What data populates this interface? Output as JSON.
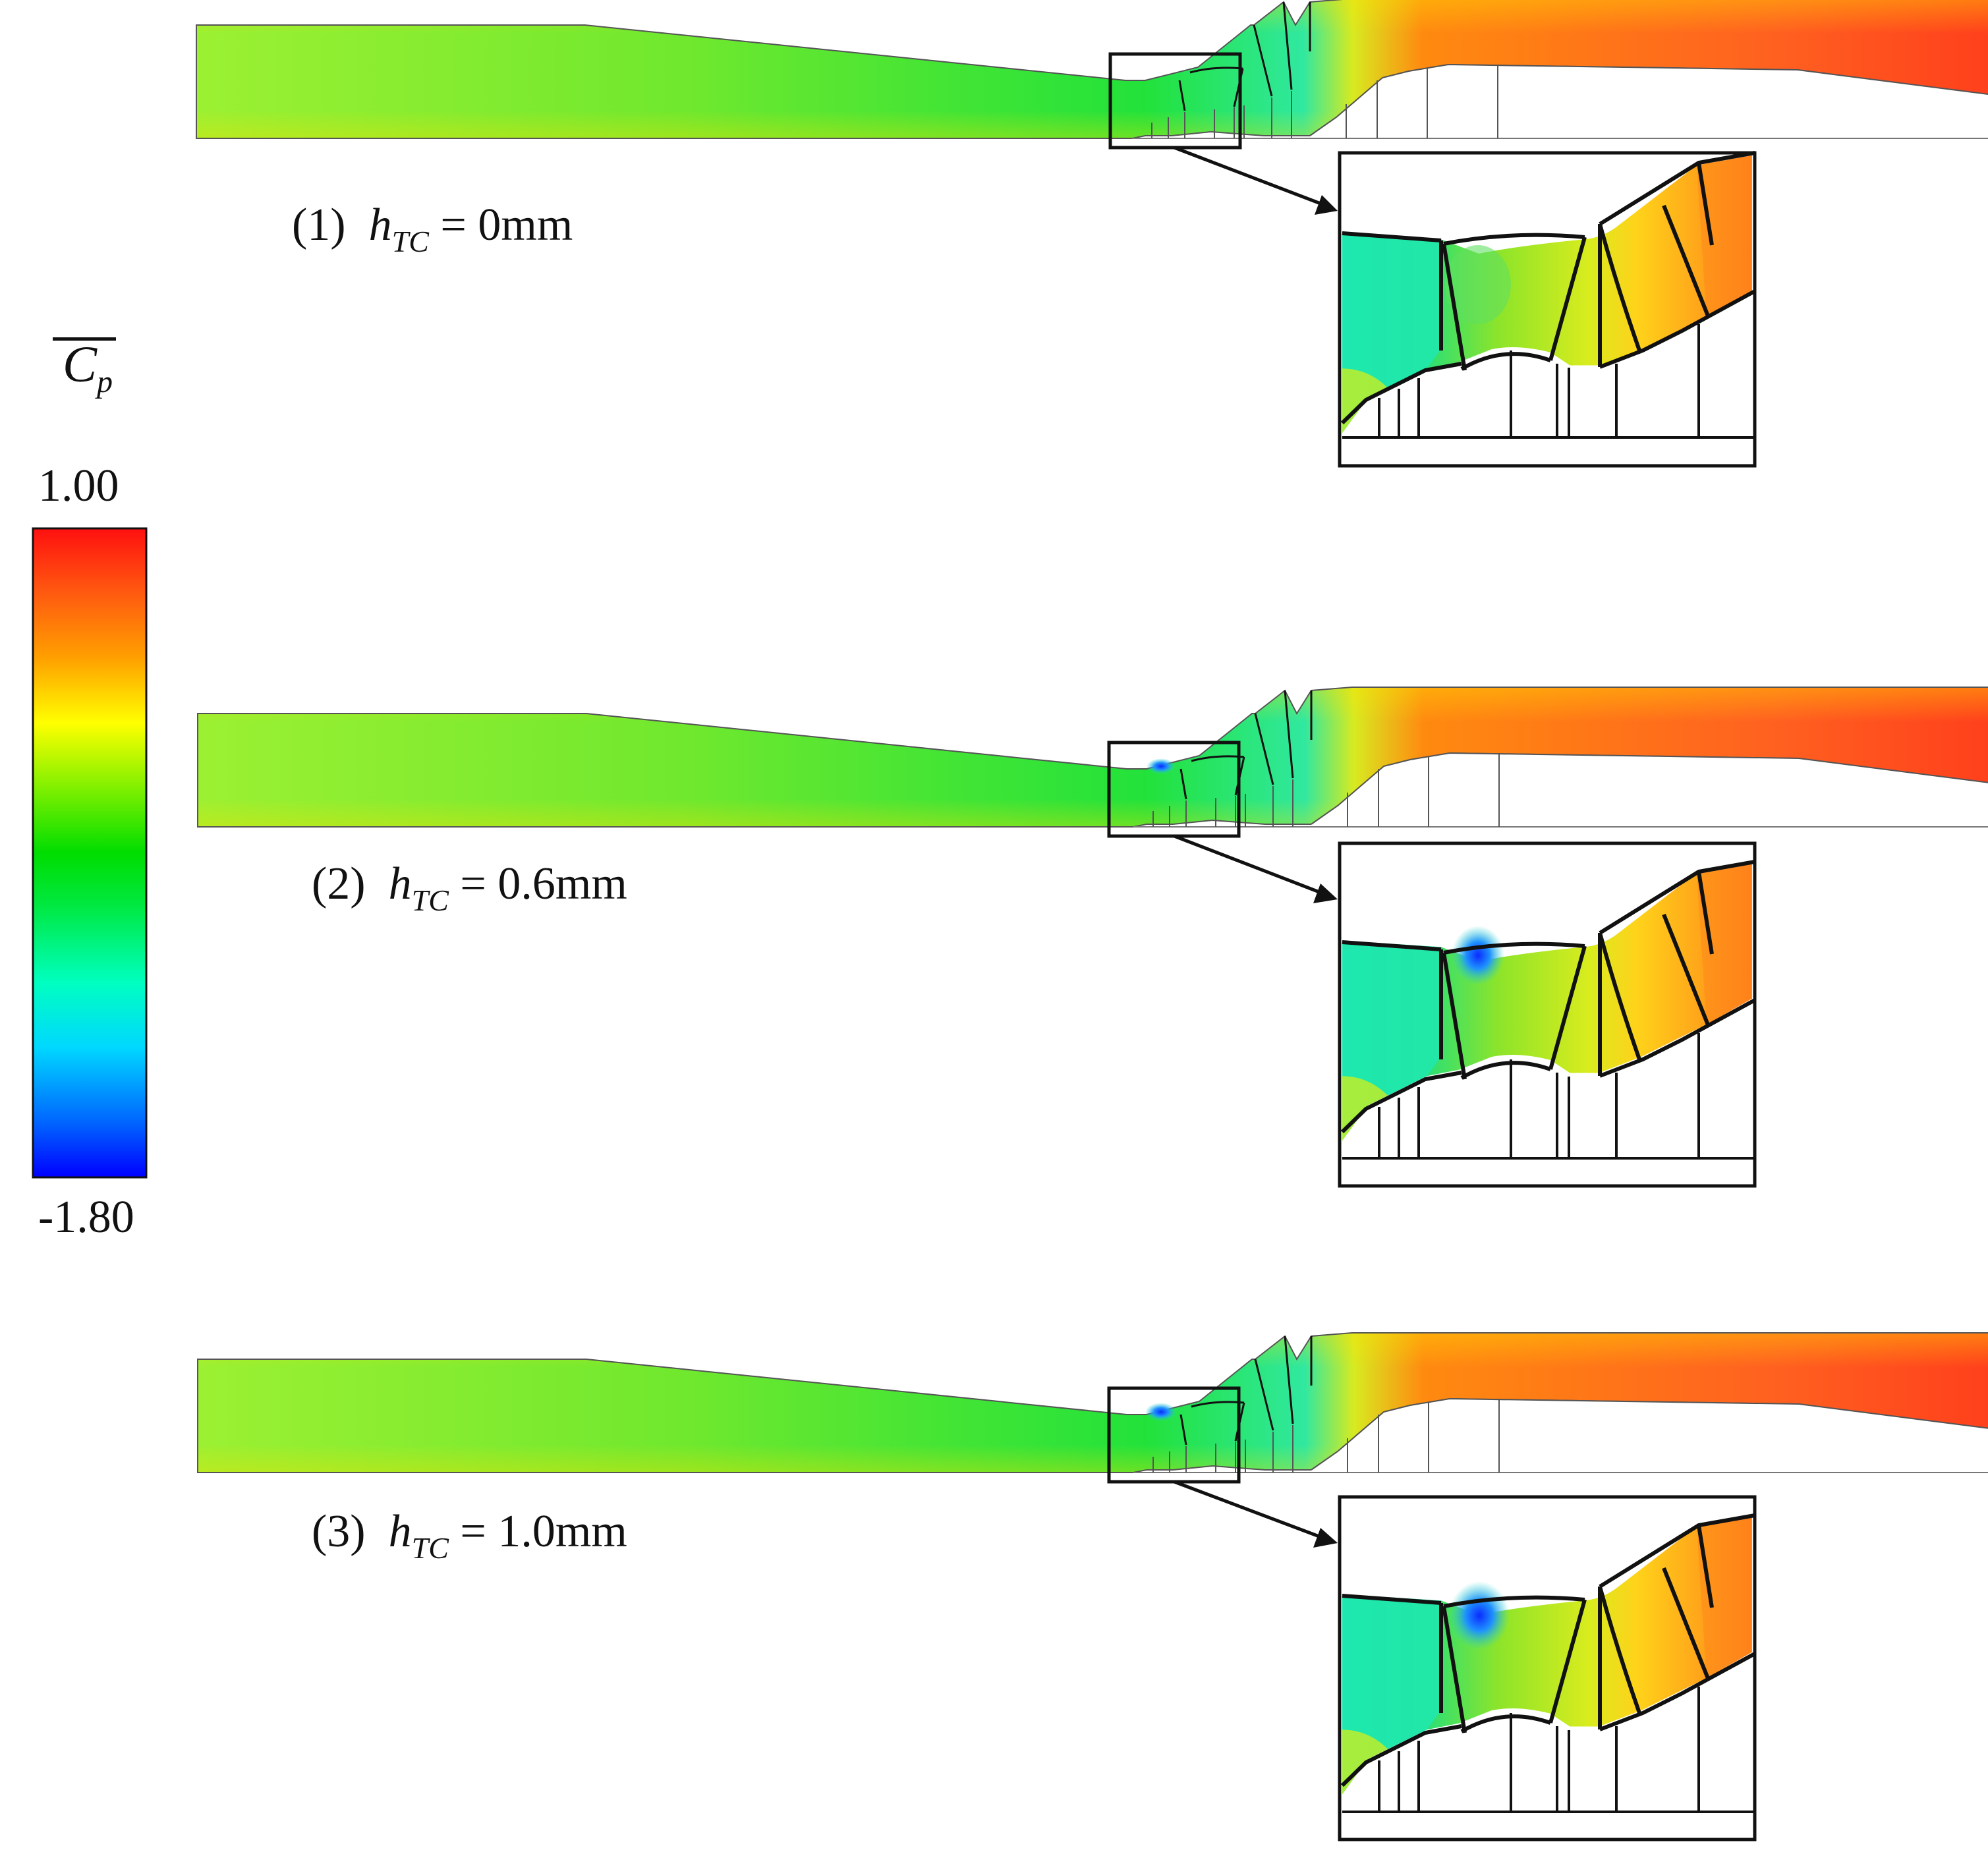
{
  "legend": {
    "title_symbol": "C",
    "title_subscript": "p",
    "max_label": "1.00",
    "min_label": "-1.80",
    "max_value": 1.0,
    "min_value": -1.8,
    "colormap": [
      "#0000ff",
      "#0060ff",
      "#00c8ff",
      "#00ffe0",
      "#00ff80",
      "#00e000",
      "#60f000",
      "#c8ff00",
      "#ffff00",
      "#ffc000",
      "#ff8000",
      "#ff4000",
      "#ff1010"
    ]
  },
  "cases": [
    {
      "index": "(1)",
      "symbol": "h",
      "subscript": "TC",
      "value_text": "= 0mm",
      "tip_clearance_mm": 0.0,
      "has_tip_vortex": false
    },
    {
      "index": "(2)",
      "symbol": "h",
      "subscript": "TC",
      "value_text": "= 0.6mm",
      "tip_clearance_mm": 0.6,
      "has_tip_vortex": true
    },
    {
      "index": "(3)",
      "symbol": "h",
      "subscript": "TC",
      "value_text": "= 1.0mm",
      "tip_clearance_mm": 1.0,
      "has_tip_vortex": true
    }
  ]
}
